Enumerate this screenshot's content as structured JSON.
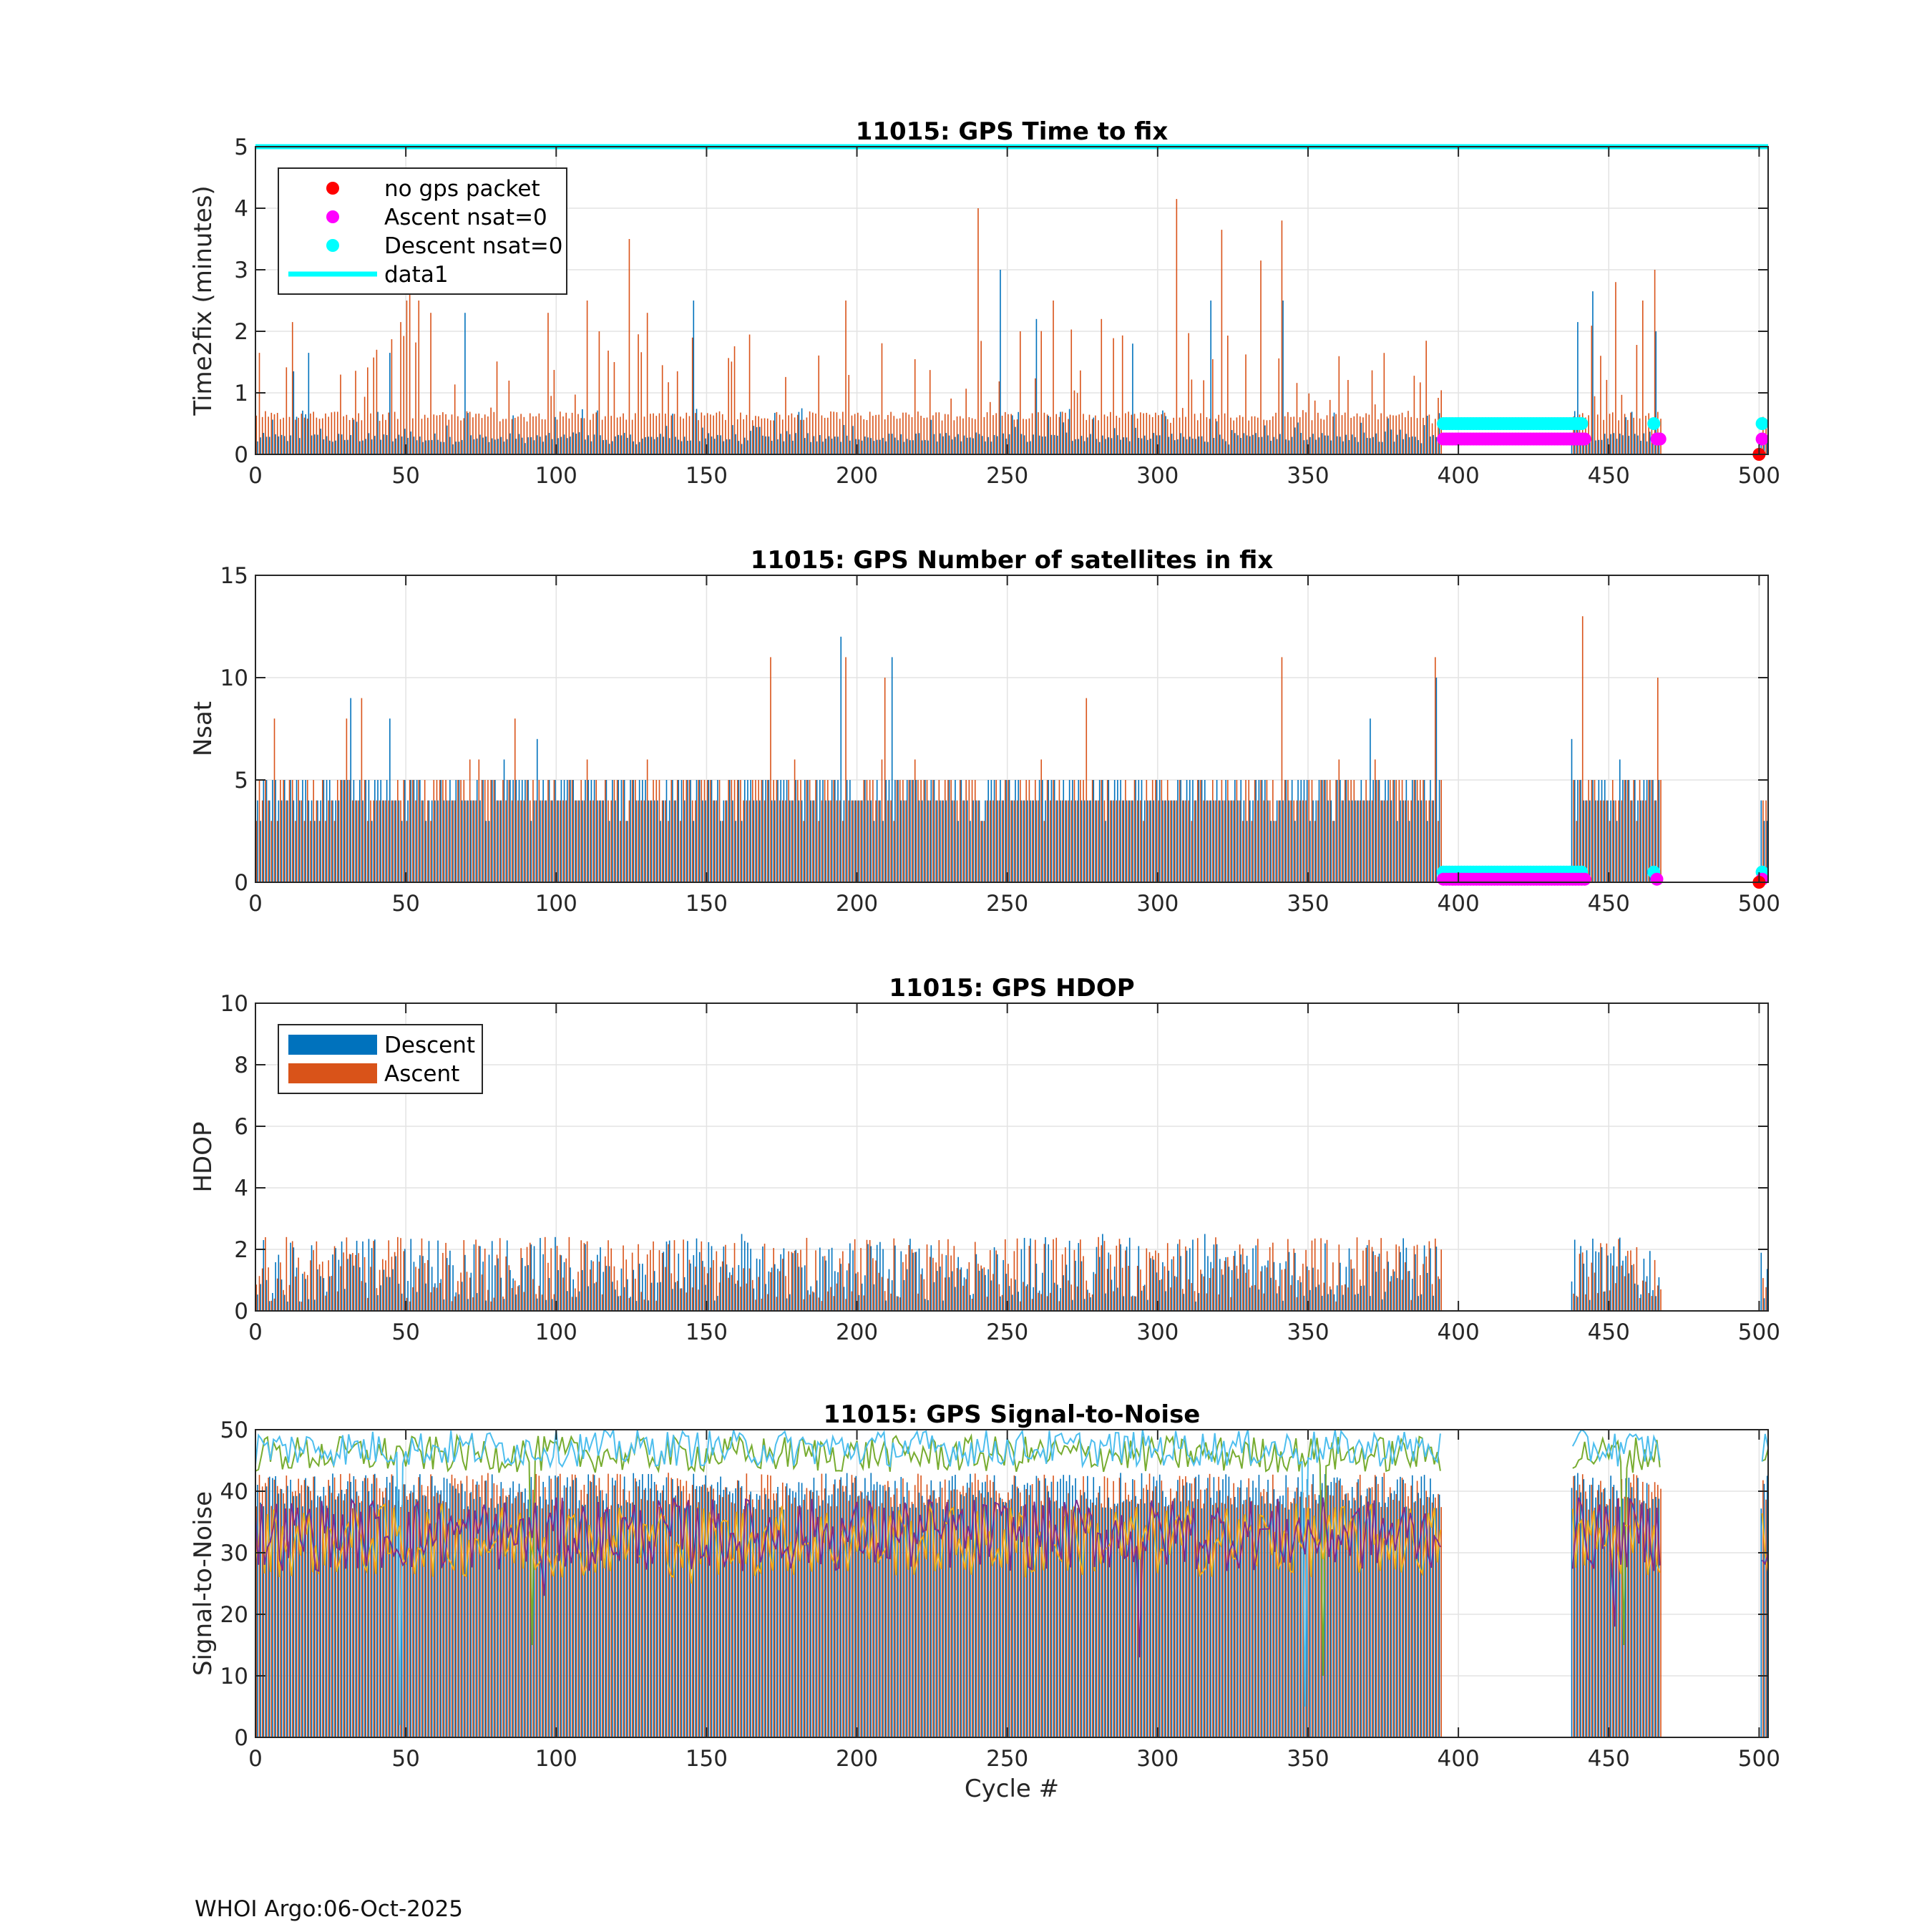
{
  "footer": "WHOI Argo:06-Oct-2025",
  "colors": {
    "descent": "#0072BD",
    "ascent": "#D95319",
    "no_gps": "#FF0000",
    "ascent_nsat0": "#FF00FF",
    "descent_nsat0": "#00FFFF"
  },
  "chart_data": [
    {
      "type": "bar",
      "title": "11015: GPS Time to fix",
      "xlabel": "",
      "ylabel": "Time2fix (minutes)",
      "xlim": [
        0,
        503
      ],
      "ylim": [
        0,
        5
      ],
      "xticks": [
        0,
        50,
        100,
        150,
        200,
        250,
        300,
        350,
        400,
        450,
        500
      ],
      "yticks": [
        0,
        1,
        2,
        3,
        4,
        5
      ],
      "grid": true,
      "legend_position": "top-left",
      "legend": [
        {
          "label": "no gps packet",
          "kind": "dot",
          "color": "#FF0000"
        },
        {
          "label": "Ascent nsat=0",
          "kind": "dot",
          "color": "#FF00FF"
        },
        {
          "label": "Descent nsat=0",
          "kind": "dot",
          "color": "#00FFFF"
        },
        {
          "label": "data1",
          "kind": "line",
          "color": "#00FFFF"
        }
      ],
      "reference_line": {
        "name": "data1",
        "y": 5
      },
      "series": [
        {
          "name": "Descent",
          "color": "#0072BD",
          "typical": 0.15,
          "peaks": [
            [
              13,
              1.35
            ],
            [
              18,
              1.65
            ],
            [
              45,
              1.65
            ],
            [
              70,
              2.3
            ],
            [
              146,
              2.5
            ],
            [
              248,
              3.0
            ],
            [
              260,
              2.2
            ],
            [
              292,
              1.8
            ],
            [
              318,
              2.5
            ],
            [
              342,
              2.5
            ],
            [
              440,
              2.15
            ],
            [
              445,
              2.65
            ],
            [
              466,
              2.0
            ]
          ]
        },
        {
          "name": "Ascent",
          "color": "#D95319",
          "typical": 0.5,
          "peaks": [
            [
              1,
              1.65
            ],
            [
              12,
              2.15
            ],
            [
              40,
              1.7
            ],
            [
              48,
              2.15
            ],
            [
              50,
              2.5
            ],
            [
              51,
              2.85
            ],
            [
              54,
              2.5
            ],
            [
              58,
              2.3
            ],
            [
              97,
              2.3
            ],
            [
              110,
              2.5
            ],
            [
              114,
              2.0
            ],
            [
              119,
              1.5
            ],
            [
              124,
              3.5
            ],
            [
              130,
              2.3
            ],
            [
              196,
              2.5
            ],
            [
              240,
              4.0
            ],
            [
              254,
              2.0
            ],
            [
              265,
              2.5
            ],
            [
              281,
              2.2
            ],
            [
              306,
              4.15
            ],
            [
              321,
              3.65
            ],
            [
              334,
              3.15
            ],
            [
              341,
              3.8
            ],
            [
              452,
              2.8
            ],
            [
              461,
              2.5
            ],
            [
              465,
              3.0
            ]
          ]
        }
      ],
      "gap": [
        395,
        437
      ],
      "gap2": [
        468,
        500
      ],
      "markers": {
        "ascent_nsat0": {
          "x_from": 395,
          "x_to": 442,
          "y": 0.25,
          "extra_x": [
            466,
            467,
            501
          ]
        },
        "descent_nsat0": {
          "x_from": 395,
          "x_to": 441,
          "y": 0.5,
          "extra_x": [
            465,
            501
          ]
        },
        "no_gps_packet": {
          "x": [
            500
          ],
          "y": 0
        }
      }
    },
    {
      "type": "bar",
      "title": "11015: GPS Number of satellites in fix",
      "xlabel": "",
      "ylabel": "Nsat",
      "xlim": [
        0,
        503
      ],
      "ylim": [
        0,
        15
      ],
      "xticks": [
        0,
        50,
        100,
        150,
        200,
        250,
        300,
        350,
        400,
        450,
        500
      ],
      "yticks": [
        0,
        5,
        10,
        15
      ],
      "grid": true,
      "series": [
        {
          "name": "Descent",
          "color": "#0072BD",
          "typical": 4,
          "peaks": [
            [
              32,
              9
            ],
            [
              45,
              8
            ],
            [
              94,
              7
            ],
            [
              195,
              12
            ],
            [
              212,
              11
            ],
            [
              371,
              8
            ],
            [
              393,
              10
            ],
            [
              438,
              7
            ],
            [
              454,
              6
            ]
          ]
        },
        {
          "name": "Ascent",
          "color": "#D95319",
          "typical": 4,
          "peaks": [
            [
              6,
              8
            ],
            [
              30,
              8
            ],
            [
              35,
              9
            ],
            [
              86,
              8
            ],
            [
              171,
              11
            ],
            [
              196,
              11
            ],
            [
              209,
              10
            ],
            [
              276,
              9
            ],
            [
              341,
              11
            ],
            [
              392,
              11
            ],
            [
              441,
              13
            ],
            [
              466,
              10
            ]
          ]
        }
      ],
      "gap": [
        395,
        437
      ],
      "gap2": [
        468,
        500
      ],
      "markers": {
        "ascent_nsat0": {
          "x_from": 395,
          "x_to": 442,
          "y": 0.15,
          "extra_x": [
            466,
            501
          ]
        },
        "descent_nsat0": {
          "x_from": 395,
          "x_to": 441,
          "y": 0.5,
          "extra_x": [
            465,
            501
          ]
        },
        "no_gps_packet": {
          "x": [
            500
          ],
          "y": 0
        }
      }
    },
    {
      "type": "bar",
      "title": "11015: GPS HDOP",
      "xlabel": "",
      "ylabel": "HDOP",
      "xlim": [
        0,
        503
      ],
      "ylim": [
        0,
        10
      ],
      "xticks": [
        0,
        50,
        100,
        150,
        200,
        250,
        300,
        350,
        400,
        450,
        500
      ],
      "yticks": [
        0,
        2,
        4,
        6,
        8,
        10
      ],
      "grid": true,
      "legend_position": "top-left",
      "legend": [
        {
          "label": "Descent",
          "kind": "bar",
          "color": "#0072BD"
        },
        {
          "label": "Ascent",
          "kind": "bar",
          "color": "#D95319"
        }
      ],
      "series": [
        {
          "name": "Descent",
          "color": "#0072BD",
          "typical": 1.2,
          "peaks": [
            [
              100,
              2.4
            ],
            [
              162,
              2.5
            ],
            [
              282,
              2.5
            ],
            [
              316,
              2.5
            ],
            [
              436,
              0.9
            ]
          ]
        },
        {
          "name": "Ascent",
          "color": "#D95319",
          "typical": 1.2,
          "peaks": [
            [
              10,
              2.4
            ],
            [
              47,
              2.4
            ],
            [
              96,
              2.4
            ],
            [
              280,
              2.4
            ],
            [
              467,
              0.7
            ]
          ]
        }
      ],
      "gap": [
        395,
        437
      ],
      "gap2": [
        468,
        500
      ]
    },
    {
      "type": "line",
      "title": "11015: GPS Signal-to-Noise",
      "xlabel": "Cycle #",
      "ylabel": "Signal-to-Noise",
      "xlim": [
        0,
        503
      ],
      "ylim": [
        0,
        50
      ],
      "xticks": [
        0,
        50,
        100,
        150,
        200,
        250,
        300,
        350,
        400,
        450,
        500
      ],
      "yticks": [
        0,
        10,
        20,
        30,
        40,
        50
      ],
      "grid": true,
      "bars": {
        "typical": 40,
        "colors": [
          "#0072BD",
          "#D95319"
        ]
      },
      "gap": [
        395,
        437
      ],
      "gap2": [
        468,
        500
      ],
      "series": [
        {
          "name": "",
          "color": "#77AC30",
          "level": 46,
          "amp": 3,
          "dips": [
            [
              92,
              15
            ],
            [
              355,
              10
            ],
            [
              455,
              15
            ]
          ]
        },
        {
          "name": "",
          "color": "#4DBEEE",
          "level": 47,
          "amp": 3,
          "dips": [
            [
              48,
              2
            ],
            [
              349,
              5
            ]
          ]
        },
        {
          "name": "",
          "color": "#EDB120",
          "level": 32,
          "amp": 6,
          "dips": [
            [
              145,
              25
            ],
            [
              256,
              26
            ]
          ]
        },
        {
          "name": "",
          "color": "#7E2F8E",
          "level": 33,
          "amp": 6,
          "dips": [
            [
              96,
              23
            ],
            [
              294,
              13
            ],
            [
              452,
              18
            ]
          ]
        }
      ]
    }
  ]
}
